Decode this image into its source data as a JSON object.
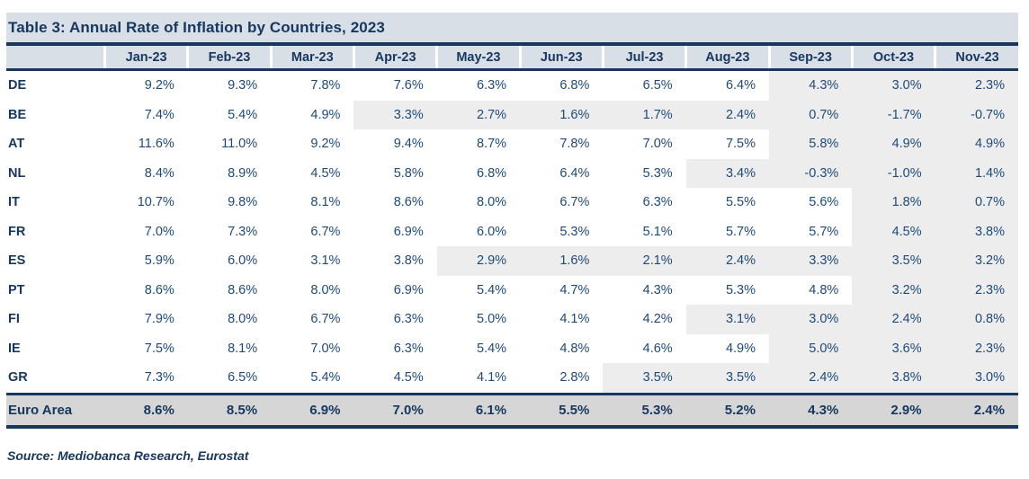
{
  "title": "Table 3: Annual Rate of Inflation by Countries, 2023",
  "source": "Source: Mediobanca Research, Eurostat",
  "columns": [
    "Jan-23",
    "Feb-23",
    "Mar-23",
    "Apr-23",
    "May-23",
    "Jun-23",
    "Jul-23",
    "Aug-23",
    "Sep-23",
    "Oct-23",
    "Nov-23"
  ],
  "rows": [
    {
      "code": "DE",
      "values": [
        "9.2%",
        "9.3%",
        "7.8%",
        "7.6%",
        "6.3%",
        "6.8%",
        "6.5%",
        "6.4%",
        "4.3%",
        "3.0%",
        "2.3%"
      ],
      "highlight_from": 8
    },
    {
      "code": "BE",
      "values": [
        "7.4%",
        "5.4%",
        "4.9%",
        "3.3%",
        "2.7%",
        "1.6%",
        "1.7%",
        "2.4%",
        "0.7%",
        "-1.7%",
        "-0.7%"
      ],
      "highlight_from": 3
    },
    {
      "code": "AT",
      "values": [
        "11.6%",
        "11.0%",
        "9.2%",
        "9.4%",
        "8.7%",
        "7.8%",
        "7.0%",
        "7.5%",
        "5.8%",
        "4.9%",
        "4.9%"
      ],
      "highlight_from": 8
    },
    {
      "code": "NL",
      "values": [
        "8.4%",
        "8.9%",
        "4.5%",
        "5.8%",
        "6.8%",
        "6.4%",
        "5.3%",
        "3.4%",
        "-0.3%",
        "-1.0%",
        "1.4%"
      ],
      "highlight_from": 7
    },
    {
      "code": "IT",
      "values": [
        "10.7%",
        "9.8%",
        "8.1%",
        "8.6%",
        "8.0%",
        "6.7%",
        "6.3%",
        "5.5%",
        "5.6%",
        "1.8%",
        "0.7%"
      ],
      "highlight_from": 9
    },
    {
      "code": "FR",
      "values": [
        "7.0%",
        "7.3%",
        "6.7%",
        "6.9%",
        "6.0%",
        "5.3%",
        "5.1%",
        "5.7%",
        "5.7%",
        "4.5%",
        "3.8%"
      ],
      "highlight_from": 9
    },
    {
      "code": "ES",
      "values": [
        "5.9%",
        "6.0%",
        "3.1%",
        "3.8%",
        "2.9%",
        "1.6%",
        "2.1%",
        "2.4%",
        "3.3%",
        "3.5%",
        "3.2%"
      ],
      "highlight_from": 4
    },
    {
      "code": "PT",
      "values": [
        "8.6%",
        "8.6%",
        "8.0%",
        "6.9%",
        "5.4%",
        "4.7%",
        "4.3%",
        "5.3%",
        "4.8%",
        "3.2%",
        "2.3%"
      ],
      "highlight_from": 9
    },
    {
      "code": "FI",
      "values": [
        "7.9%",
        "8.0%",
        "6.7%",
        "6.3%",
        "5.0%",
        "4.1%",
        "4.2%",
        "3.1%",
        "3.0%",
        "2.4%",
        "0.8%"
      ],
      "highlight_from": 7
    },
    {
      "code": "IE",
      "values": [
        "7.5%",
        "8.1%",
        "7.0%",
        "6.3%",
        "5.4%",
        "4.8%",
        "4.6%",
        "4.9%",
        "5.0%",
        "3.6%",
        "2.3%"
      ],
      "highlight_from": 8
    },
    {
      "code": "GR",
      "values": [
        "7.3%",
        "6.5%",
        "5.4%",
        "4.5%",
        "4.1%",
        "2.8%",
        "3.5%",
        "3.5%",
        "2.4%",
        "3.8%",
        "3.0%"
      ],
      "highlight_from": 6
    }
  ],
  "footer_row": {
    "code": "Euro Area",
    "values": [
      "8.6%",
      "8.5%",
      "6.9%",
      "7.0%",
      "6.1%",
      "5.5%",
      "5.3%",
      "5.2%",
      "4.3%",
      "2.9%",
      "2.4%"
    ]
  },
  "colors": {
    "navy": "#17375e",
    "header_bg": "#d8dfe7",
    "cell_text": "#1d4a7a",
    "highlight_bg": "#ededed",
    "footer_bg": "#d6d6d6"
  }
}
